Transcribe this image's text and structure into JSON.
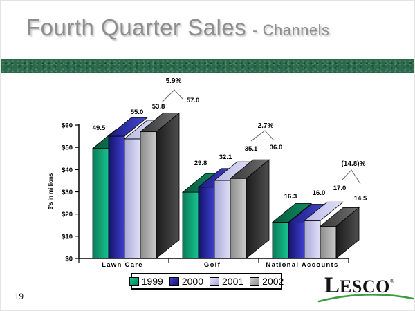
{
  "slide": {
    "title_main": "Fourth Quarter Sales",
    "title_sub": "- Channels",
    "page_number": "19",
    "logo": {
      "l": "L",
      "rest": "ESCO",
      "reg": "®"
    }
  },
  "chart_data": {
    "type": "bar",
    "variant": "3d-clustered-column",
    "title": "",
    "xlabel": "",
    "ylabel": "$'s in millions",
    "ylim": [
      0,
      60
    ],
    "ytick_labels": [
      "$0",
      "$10",
      "$20",
      "$30",
      "$40",
      "$50",
      "$60"
    ],
    "grid": false,
    "legend_position": "bottom",
    "categories": [
      "Lawn Care",
      "Golf",
      "National Accounts"
    ],
    "series": [
      {
        "name": "1999",
        "color": "#0FAE80",
        "values": [
          49.5,
          29.8,
          16.3
        ]
      },
      {
        "name": "2000",
        "color": "#20209A",
        "values": [
          55.0,
          32.1,
          16.0
        ]
      },
      {
        "name": "2001",
        "color": "#C4C4EE",
        "values": [
          53.8,
          35.1,
          17.0
        ]
      },
      {
        "name": "2002",
        "color": "#9A9A9A",
        "values": [
          57.0,
          36.0,
          14.5
        ]
      }
    ],
    "annotations": [
      {
        "label": "5.9%",
        "category": "Lawn Care"
      },
      {
        "label": "2.7%",
        "category": "Golf"
      },
      {
        "label": "(14.8)%",
        "category": "National Accounts"
      }
    ]
  }
}
